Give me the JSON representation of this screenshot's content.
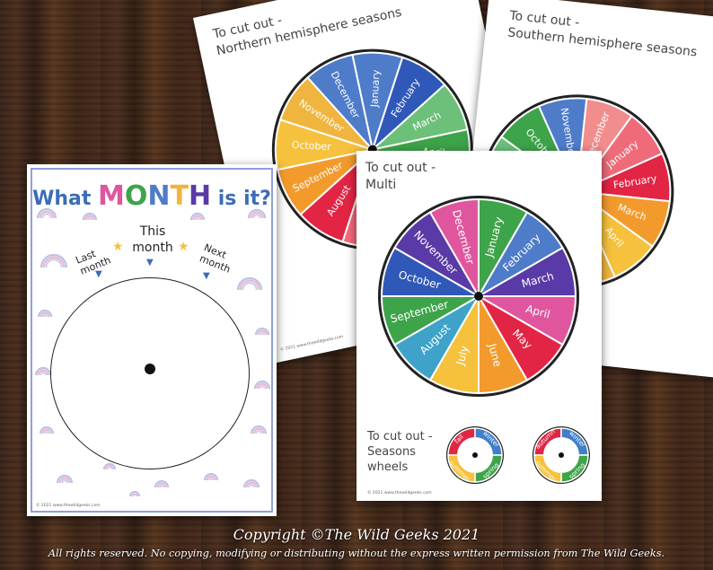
{
  "colors": {
    "months": [
      "#3ea44a",
      "#4f7cc9",
      "#5a3aa6",
      "#e0569e",
      "#e22544",
      "#f39a2c",
      "#f6c13c",
      "#3fa3c9",
      "#3ea44a",
      "#2f58b8",
      "#5a3aa6",
      "#e0569e",
      "#e22544",
      "#f0b53f"
    ]
  },
  "multi_sheet": {
    "title_line1": "To cut out -",
    "title_line2": "Multi",
    "months": [
      "January",
      "February",
      "March",
      "April",
      "May",
      "June",
      "July",
      "August",
      "September",
      "October",
      "November",
      "December"
    ],
    "seasons_line1": "To cut out -",
    "seasons_line2": "Seasons",
    "seasons_line3": "wheels",
    "footer": "© 2021 www.thewildgeeks.com"
  },
  "north_sheet": {
    "title_line1": "To cut out -",
    "title_line2": "Northern hemisphere seasons",
    "footer": "© 2021 www.thewildgeeks.com"
  },
  "south_sheet": {
    "title_line1": "To cut out -",
    "title_line2": "Southern hemisphere seasons"
  },
  "main_sheet": {
    "title_what": "What ",
    "title_month_letters": [
      "M",
      "O",
      "N",
      "T",
      "H"
    ],
    "title_rest": " is it?",
    "this_month_line1": "This",
    "this_month_line2": "month",
    "last_month_line1": "Last",
    "last_month_line2": "month",
    "next_month_line1": "Next",
    "next_month_line2": "month",
    "footer": "© 2021 www.thewildgeeks.com"
  },
  "season_wheel_labels": {
    "left": [
      "fall",
      "winter",
      "spring",
      "summer"
    ],
    "right": [
      "autumn",
      "winter",
      "spring",
      "summer"
    ]
  },
  "copyright": {
    "line1": "Copyright ©The Wild Geeks 2021",
    "line2": "All rights reserved. No copying, modifying or distributing without the express written permission from The Wild Geeks."
  }
}
